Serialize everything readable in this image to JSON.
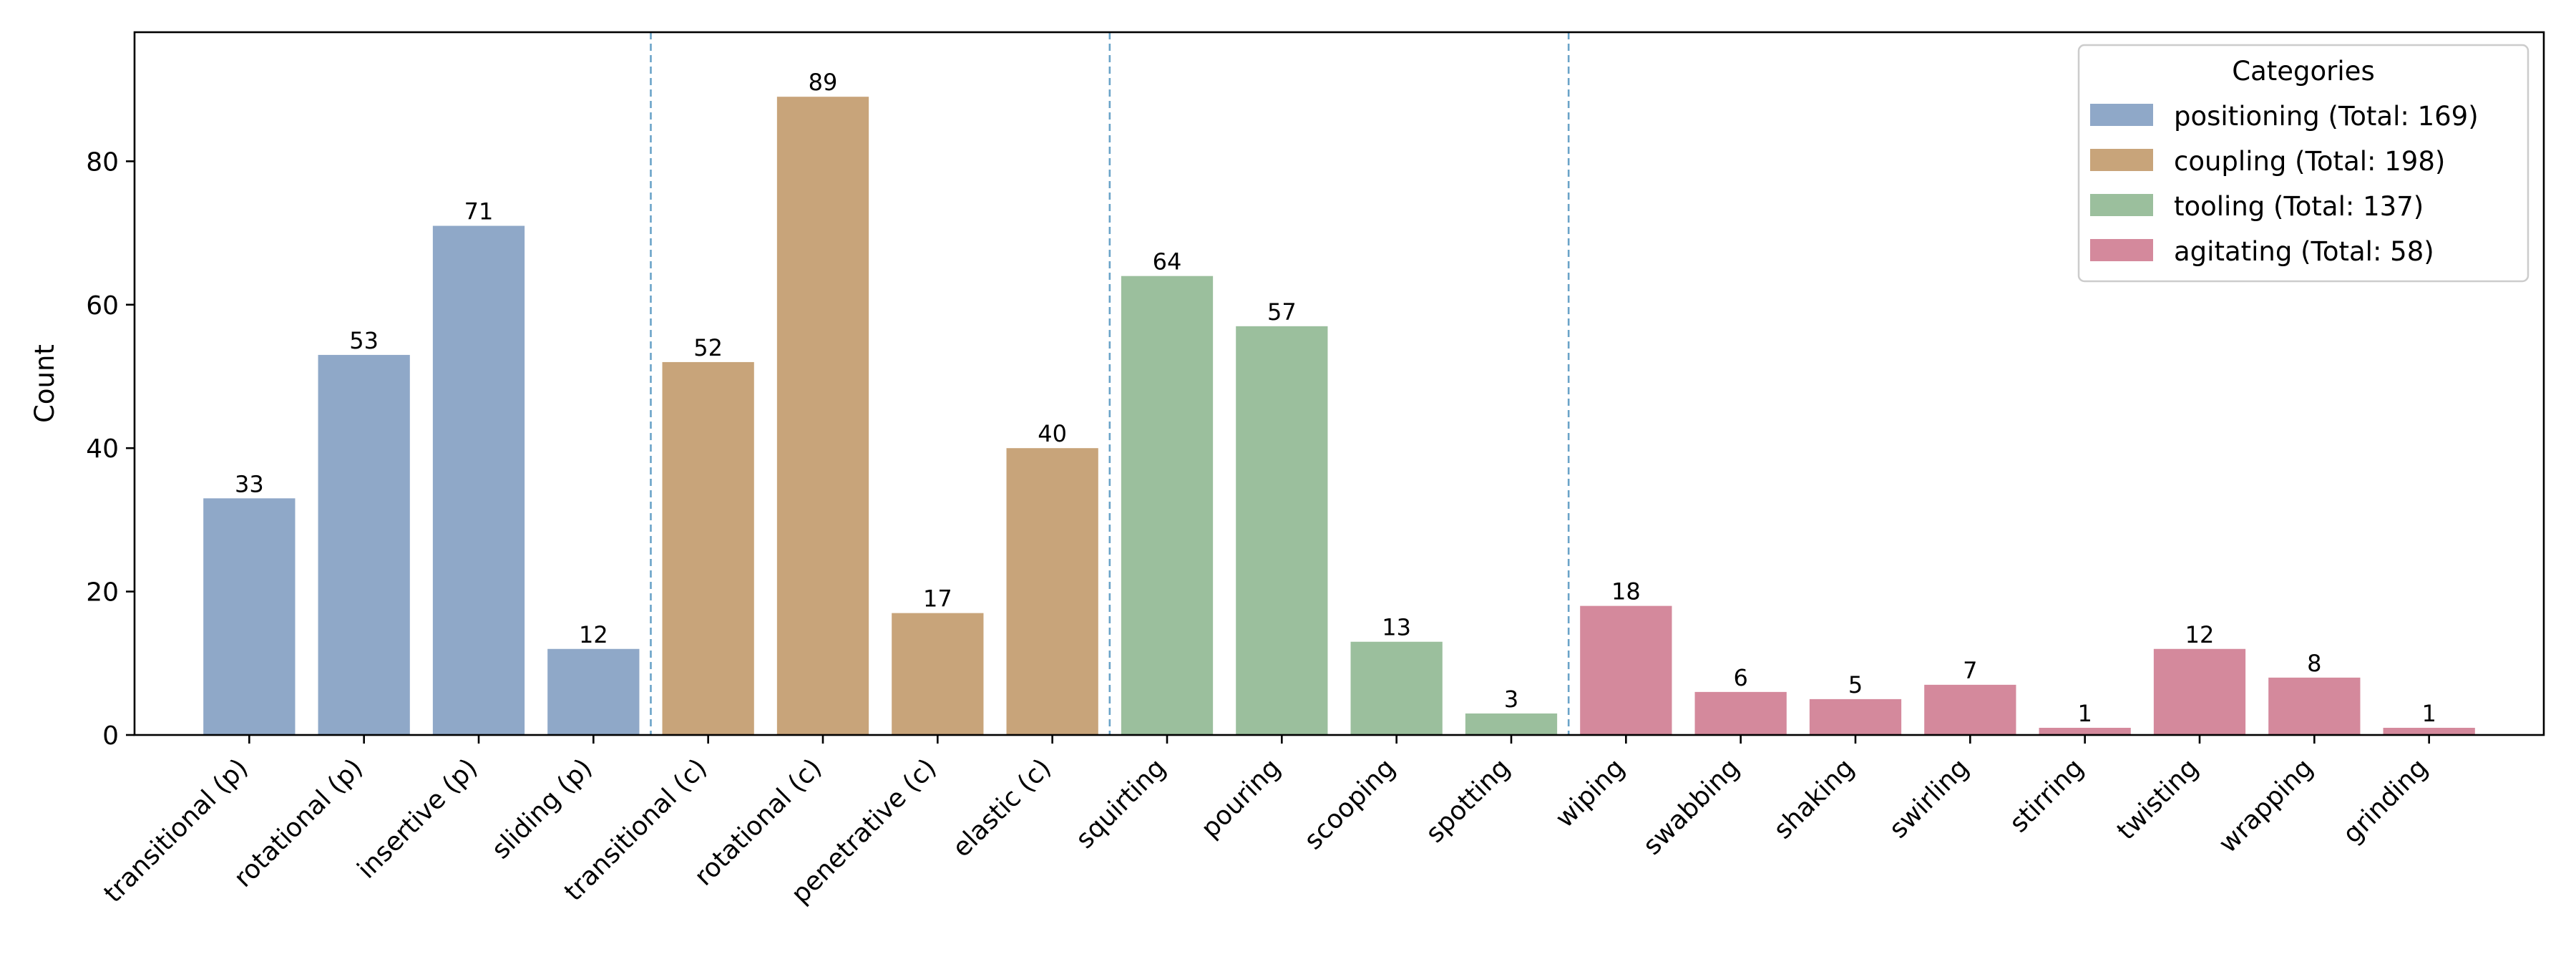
{
  "chart_data": {
    "type": "bar",
    "title": "",
    "xlabel": "",
    "ylabel": "Count",
    "ylim": [
      0,
      98
    ],
    "yticks": [
      0,
      20,
      40,
      60,
      80
    ],
    "grid": false,
    "legend": {
      "title": "Categories",
      "placement": "top-right",
      "entries": [
        {
          "label": "positioning (Total: 169)",
          "color": "#8FA8C8"
        },
        {
          "label": "coupling (Total: 198)",
          "color": "#C8A47A"
        },
        {
          "label": "tooling (Total: 137)",
          "color": "#9BBF9D"
        },
        {
          "label": "agitating (Total: 58)",
          "color": "#D4899C"
        }
      ]
    },
    "group_separators": "dashed vertical lines between groups",
    "separator_color": "#6AA3C8",
    "categories": [
      "transitional (p)",
      "rotational (p)",
      "insertive (p)",
      "sliding (p)",
      "transitional (c)",
      "rotational (c)",
      "penetrative (c)",
      "elastic (c)",
      "squirting",
      "pouring",
      "scooping",
      "spotting",
      "wiping",
      "swabbing",
      "shaking",
      "swirling",
      "stirring",
      "twisting",
      "wrapping",
      "grinding"
    ],
    "values": [
      33,
      53,
      71,
      12,
      52,
      89,
      17,
      40,
      64,
      57,
      13,
      3,
      18,
      6,
      5,
      7,
      1,
      12,
      8,
      1
    ],
    "groups": [
      {
        "name": "positioning",
        "color": "#8FA8C8",
        "count": 4
      },
      {
        "name": "coupling",
        "color": "#C8A47A",
        "count": 4
      },
      {
        "name": "tooling",
        "color": "#9BBF9D",
        "count": 4
      },
      {
        "name": "agitating",
        "color": "#D4899C",
        "count": 8
      }
    ]
  }
}
